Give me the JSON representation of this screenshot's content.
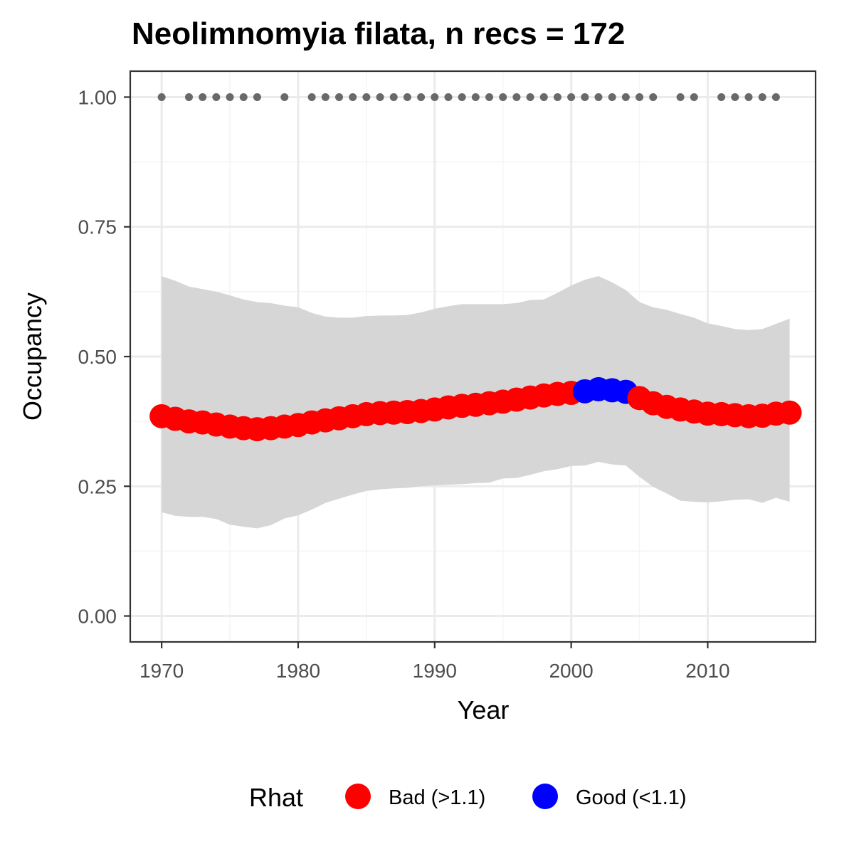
{
  "chart_data": {
    "type": "line",
    "title": "Neolimnomyia filata, n recs = 172",
    "xlabel": "Year",
    "ylabel": "Occupancy",
    "xlim": [
      1967.7,
      2017.9
    ],
    "ylim": [
      -0.05,
      1.05
    ],
    "x_ticks": [
      1970,
      1980,
      1990,
      2000,
      2010
    ],
    "x_tick_labels": [
      "1970",
      "1980",
      "1990",
      "2000",
      "2010"
    ],
    "y_ticks": [
      0,
      0.25,
      0.5,
      0.75,
      1.0
    ],
    "y_tick_labels": [
      "0.00",
      "0.25",
      "0.50",
      "0.75",
      "1.00"
    ],
    "grid": true,
    "x": [
      1970,
      1971,
      1972,
      1973,
      1974,
      1975,
      1976,
      1977,
      1978,
      1979,
      1980,
      1981,
      1982,
      1983,
      1984,
      1985,
      1986,
      1987,
      1988,
      1989,
      1990,
      1991,
      1992,
      1993,
      1994,
      1995,
      1996,
      1997,
      1998,
      1999,
      2000,
      2001,
      2002,
      2003,
      2004,
      2005,
      2006,
      2007,
      2008,
      2009,
      2010,
      2011,
      2012,
      2013,
      2014,
      2015,
      2016
    ],
    "occupancy": [
      0.385,
      0.38,
      0.375,
      0.373,
      0.369,
      0.365,
      0.362,
      0.36,
      0.362,
      0.365,
      0.368,
      0.373,
      0.377,
      0.381,
      0.385,
      0.389,
      0.391,
      0.392,
      0.393,
      0.395,
      0.398,
      0.402,
      0.405,
      0.407,
      0.41,
      0.413,
      0.417,
      0.421,
      0.425,
      0.428,
      0.43,
      0.433,
      0.437,
      0.435,
      0.432,
      0.42,
      0.41,
      0.403,
      0.398,
      0.394,
      0.39,
      0.389,
      0.387,
      0.385,
      0.386,
      0.39,
      0.392
    ],
    "ci_lower": [
      0.2,
      0.193,
      0.191,
      0.191,
      0.187,
      0.176,
      0.172,
      0.169,
      0.175,
      0.188,
      0.194,
      0.205,
      0.218,
      0.226,
      0.234,
      0.241,
      0.244,
      0.246,
      0.247,
      0.25,
      0.252,
      0.253,
      0.254,
      0.256,
      0.257,
      0.265,
      0.266,
      0.272,
      0.279,
      0.283,
      0.289,
      0.29,
      0.297,
      0.292,
      0.29,
      0.268,
      0.249,
      0.236,
      0.222,
      0.22,
      0.219,
      0.221,
      0.224,
      0.225,
      0.218,
      0.228,
      0.22
    ],
    "ci_upper": [
      0.655,
      0.646,
      0.635,
      0.63,
      0.625,
      0.618,
      0.61,
      0.605,
      0.603,
      0.598,
      0.595,
      0.584,
      0.577,
      0.575,
      0.575,
      0.578,
      0.579,
      0.579,
      0.58,
      0.585,
      0.592,
      0.597,
      0.601,
      0.601,
      0.601,
      0.601,
      0.603,
      0.609,
      0.61,
      0.623,
      0.637,
      0.648,
      0.655,
      0.643,
      0.628,
      0.605,
      0.595,
      0.59,
      0.582,
      0.575,
      0.564,
      0.559,
      0.553,
      0.551,
      0.553,
      0.563,
      0.573
    ],
    "rhat": [
      "Bad",
      "Bad",
      "Bad",
      "Bad",
      "Bad",
      "Bad",
      "Bad",
      "Bad",
      "Bad",
      "Bad",
      "Bad",
      "Bad",
      "Bad",
      "Bad",
      "Bad",
      "Bad",
      "Bad",
      "Bad",
      "Bad",
      "Bad",
      "Bad",
      "Bad",
      "Bad",
      "Bad",
      "Bad",
      "Bad",
      "Bad",
      "Bad",
      "Bad",
      "Bad",
      "Bad",
      "Good",
      "Good",
      "Good",
      "Good",
      "Bad",
      "Bad",
      "Bad",
      "Bad",
      "Bad",
      "Bad",
      "Bad",
      "Bad",
      "Bad",
      "Bad",
      "Bad",
      "Bad"
    ],
    "record_years": [
      1970,
      1972,
      1973,
      1974,
      1975,
      1976,
      1977,
      1979,
      1981,
      1982,
      1983,
      1984,
      1985,
      1986,
      1987,
      1988,
      1989,
      1990,
      1991,
      1992,
      1993,
      1994,
      1995,
      1996,
      1997,
      1998,
      1999,
      2000,
      2001,
      2002,
      2003,
      2004,
      2005,
      2006,
      2008,
      2009,
      2011,
      2012,
      2013,
      2014,
      2015
    ],
    "record_value": 1.0,
    "legend": {
      "title": "Rhat",
      "position": "bottom",
      "items": [
        {
          "key": "Bad",
          "label": "Bad (>1.1)",
          "color": "#ff0000"
        },
        {
          "key": "Good",
          "label": "Good (<1.1)",
          "color": "#0000ff"
        }
      ]
    },
    "colors": {
      "ribbon": "#d6d6d6",
      "record_points": "#696969",
      "panel_border": "#333333",
      "grid_major": "#ebebeb",
      "grid_minor": "#f5f5f5"
    }
  }
}
